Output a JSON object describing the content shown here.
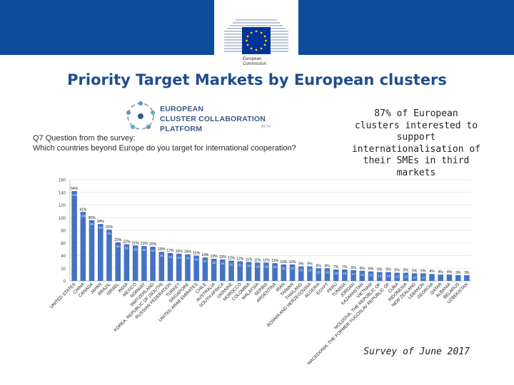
{
  "header": {
    "org_line1": "European",
    "org_line2": "Commission",
    "colors": {
      "bar": "#0b4d9b",
      "accent_blue": "#1f4e8c",
      "flag": "#003399",
      "star": "#ffcc00"
    }
  },
  "page": {
    "title": "Priority Target Markets by European clusters",
    "note": "87% of European clusters interested to support internationalisation of their SMEs in third markets",
    "survey": "Survey of June 2017"
  },
  "logo": {
    "line1": "EUROPEAN",
    "line2": "CLUSTER COLLABORATION",
    "line3": "PLATFORM",
    "small": "BETA"
  },
  "question": {
    "line1": "Q7 Question from the survey:",
    "line2": "Which countries beyond Europe do you target for international cooperation?"
  },
  "chart_data": {
    "type": "bar",
    "ylim": [
      0,
      160
    ],
    "yticks": [
      0,
      20,
      40,
      60,
      80,
      100,
      120,
      140,
      160
    ],
    "bar_color": "#4472c4",
    "grid": true,
    "categories": [
      "UNITED STATES",
      "CHINA",
      "CANADA",
      "JAPAN",
      "BRAZIL",
      "ISRAEL",
      "INDIA",
      "MEXICO",
      "NORWAY",
      "SWITZERLAND",
      "KOREA, REPUBLIC OF (SOUTH)",
      "RUSSIAN FEDERATION",
      "TURKEY",
      "SINGAPORE",
      "UNITED ARAB EMIRATES",
      "CHILE",
      "AUSTRALIA",
      "SOUTH AFRICA",
      "UKRAINE",
      "MOROCCO",
      "COLOMBIA",
      "MALAYSIA",
      "SERBIA",
      "ARGENTINA",
      "IRAN",
      "TAIWAN",
      "THAILAND",
      "BOSNIA AND HERZEGOVINA",
      "ALGERIA",
      "EGYPT",
      "PERU",
      "TUNISIA",
      "JORDAN",
      "KAZAKHSTAN",
      "VIETNAM",
      "MOLDOVA, THE REPUBLIC OF",
      "MACEDONIA, THE FORMER YUGOSLAV REPUBLIC OF",
      "CUBA",
      "INDONESIA",
      "NEW ZEALAND",
      "LEBANON",
      "GEORGIA",
      "QATAR",
      "ALBANIA",
      "BELARUS",
      "UZBEKISTAN"
    ],
    "values": [
      142,
      109,
      96,
      90,
      81,
      61,
      58,
      56,
      55,
      54,
      46,
      44,
      43,
      42,
      40,
      37,
      35,
      34,
      32,
      31,
      30,
      29,
      29,
      28,
      26,
      26,
      23,
      23,
      20,
      20,
      18,
      18,
      17,
      16,
      15,
      14,
      14,
      13,
      13,
      12,
      12,
      11,
      10,
      10,
      9,
      9
    ],
    "pct_labels": [
      "54%",
      "41%",
      "36%",
      "34%",
      "31%",
      "23%",
      "22%",
      "21%",
      "21%",
      "20%",
      "18%",
      "17%",
      "16%",
      "16%",
      "15%",
      "14%",
      "13%",
      "13%",
      "12%",
      "12%",
      "11%",
      "11%",
      "11%",
      "11%",
      "10%",
      "10%",
      "9%",
      "9%",
      "8%",
      "8%",
      "7%",
      "7%",
      "6%",
      "6%",
      "6%",
      "5%",
      "5%",
      "5%",
      "5%",
      "5%",
      "5%",
      "4%",
      "4%",
      "4%",
      "3%",
      "3%"
    ]
  }
}
